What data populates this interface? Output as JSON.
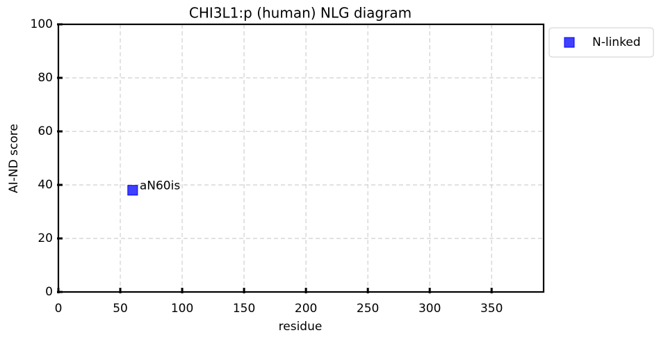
{
  "chart_data": {
    "type": "scatter",
    "title": "CHI3L1:p (human) NLG diagram",
    "x_label": "residue",
    "y_label": "AI-ND score",
    "series": [
      {
        "name": "N-linked",
        "color": "#0000ff",
        "x": [
          60
        ],
        "values": [
          38
        ],
        "labels": [
          "aN60is"
        ]
      }
    ],
    "xlim": [
      0,
      392
    ],
    "xticks": [
      0,
      50,
      100,
      150,
      200,
      250,
      300,
      350
    ],
    "ylim": [
      0,
      100
    ],
    "yticks": [
      0,
      20,
      40,
      60,
      80,
      100
    ],
    "grid": true,
    "legend": "outside-upper-right"
  }
}
